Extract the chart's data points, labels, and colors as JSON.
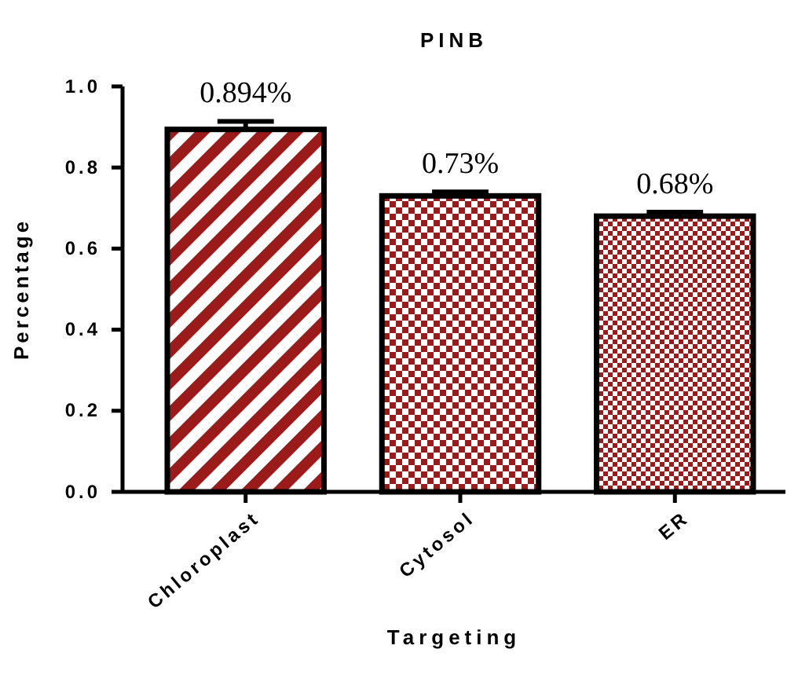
{
  "chart_data": {
    "type": "bar",
    "title": "PINB",
    "xlabel": "Targeting",
    "ylabel": "Percentage",
    "categories": [
      "Chloroplast",
      "Cytosol",
      "ER"
    ],
    "values": [
      0.894,
      0.73,
      0.68
    ],
    "errors": [
      0.02,
      0.01,
      0.01
    ],
    "value_labels": [
      "0.894%",
      "0.73%",
      "0.68%"
    ],
    "colors": [
      "#9b1b1b",
      "#9b1b1b",
      "#9b1b1b"
    ],
    "ylim": [
      0,
      1
    ],
    "yticks": [
      {
        "value": 0,
        "label": "0.0"
      },
      {
        "value": 0.2,
        "label": "0.2"
      },
      {
        "value": 0.4,
        "label": "0.4"
      },
      {
        "value": 0.6,
        "label": "0.6"
      },
      {
        "value": 0.8,
        "label": "0.8"
      },
      {
        "value": 1,
        "label": "1.0"
      }
    ],
    "grid": false
  }
}
